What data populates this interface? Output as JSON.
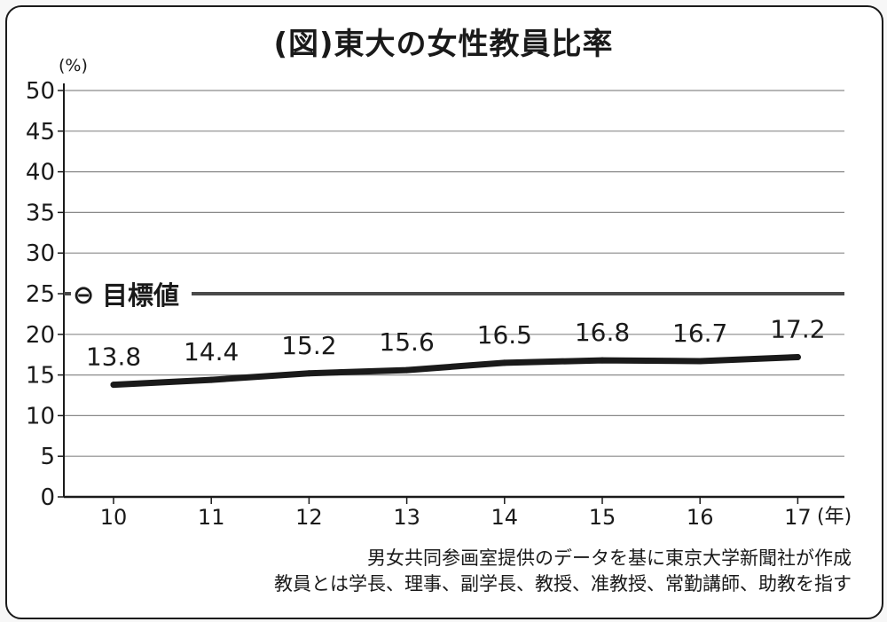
{
  "title": "(図)東大の女性教員比率",
  "chart_data": {
    "type": "line",
    "ylabel": "(%)",
    "xlabel": "(年)",
    "ylim": [
      0,
      50
    ],
    "y_ticks": [
      "0",
      "5",
      "10",
      "15",
      "20",
      "25",
      "30",
      "35",
      "40",
      "45",
      "50"
    ],
    "categories": [
      "10",
      "11",
      "12",
      "13",
      "14",
      "15",
      "16",
      "17"
    ],
    "series": [
      {
        "values": [
          13.8,
          14.4,
          15.2,
          15.6,
          16.5,
          16.8,
          16.7,
          17.2
        ],
        "labels": [
          "13.8",
          "14.4",
          "15.2",
          "15.6",
          "16.5",
          "16.8",
          "16.7",
          "17.2"
        ]
      }
    ],
    "target": {
      "value": 25,
      "label": "目標値",
      "marker_symbol": "⊖"
    },
    "grid": true
  },
  "notes": [
    "男女共同参画室提供のデータを基に東京大学新聞社が作成",
    "教員とは学長、理事、副学長、教授、准教授、常勤講師、助教を指す"
  ],
  "colors": {
    "line": "#1a1a1a",
    "target": "#4a4a4a",
    "grid": "#8a8a8a"
  }
}
